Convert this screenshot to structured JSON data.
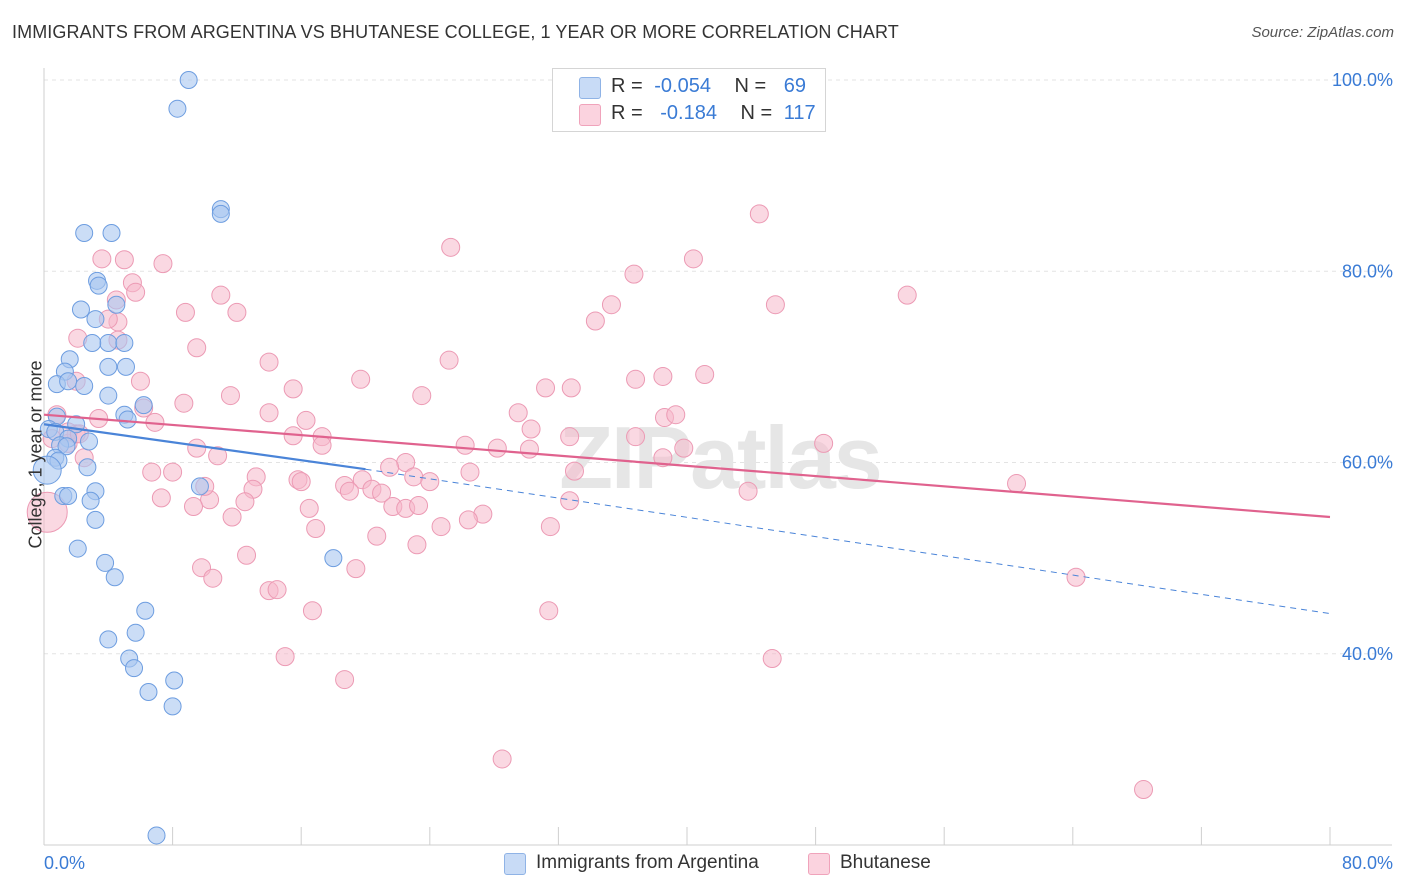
{
  "title": "IMMIGRANTS FROM ARGENTINA VS BHUTANESE COLLEGE, 1 YEAR OR MORE CORRELATION CHART",
  "source": "Source: ZipAtlas.com",
  "watermark": "ZIPatlas",
  "legend": {
    "rows": [
      {
        "r_label": "R =",
        "r_value": "-0.054",
        "n_label": "N =",
        "n_value": "69",
        "color": "#a9c7f0"
      },
      {
        "r_label": "R =",
        "r_value": "-0.184",
        "n_label": "N =",
        "n_value": "117",
        "color": "#f5b8cb"
      }
    ]
  },
  "bottom_legend": [
    {
      "label": "Immigrants from Argentina",
      "color": "#a9c7f0"
    },
    {
      "label": "Bhutanese",
      "color": "#f5b8cb"
    }
  ],
  "chart_data": {
    "type": "scatter",
    "ylabel": "College, 1 year or more",
    "xlim": [
      0,
      80
    ],
    "ylim": [
      20,
      100
    ],
    "x_tick_labels": [
      "0.0%",
      "80.0%"
    ],
    "y_tick_labels": [
      "100.0%",
      "80.0%",
      "60.0%",
      "40.0%"
    ],
    "y_ticks": [
      100,
      80,
      60,
      40
    ],
    "grid": true,
    "series": [
      {
        "name": "Immigrants from Argentina",
        "color": "#4a84d8",
        "fill": "#a9c7f0",
        "points": [
          [
            9,
            100
          ],
          [
            8.3,
            97
          ],
          [
            11,
            86.5
          ],
          [
            11,
            86
          ],
          [
            4.2,
            84
          ],
          [
            2.5,
            84
          ],
          [
            3.3,
            79
          ],
          [
            3.4,
            78.5
          ],
          [
            2.3,
            76
          ],
          [
            4.5,
            76.5
          ],
          [
            3.2,
            75
          ],
          [
            4,
            72.5
          ],
          [
            5,
            72.5
          ],
          [
            3,
            72.5
          ],
          [
            1.6,
            70.8
          ],
          [
            5.1,
            70
          ],
          [
            4,
            70
          ],
          [
            1.3,
            69.5
          ],
          [
            0.8,
            68.2
          ],
          [
            1.5,
            68.5
          ],
          [
            2.5,
            68
          ],
          [
            4,
            67
          ],
          [
            6.2,
            66
          ],
          [
            5,
            65
          ],
          [
            5.2,
            64.5
          ],
          [
            0.8,
            64.8
          ],
          [
            2,
            64
          ],
          [
            0.3,
            63.5
          ],
          [
            0.7,
            63.2
          ],
          [
            1.5,
            62.5
          ],
          [
            2.8,
            62.2
          ],
          [
            1,
            61.8
          ],
          [
            1.4,
            61.7
          ],
          [
            0.7,
            60.5
          ],
          [
            0.9,
            60.2
          ],
          [
            2.7,
            59.5
          ],
          [
            9.7,
            57.5
          ],
          [
            3.2,
            57
          ],
          [
            1.2,
            56.5
          ],
          [
            1.5,
            56.5
          ],
          [
            2.9,
            56
          ],
          [
            3.2,
            54
          ],
          [
            2.1,
            51
          ],
          [
            18,
            50
          ],
          [
            3.8,
            49.5
          ],
          [
            4.4,
            48
          ],
          [
            6.3,
            44.5
          ],
          [
            4,
            41.5
          ],
          [
            5.7,
            42.2
          ],
          [
            5.3,
            39.5
          ],
          [
            5.6,
            38.5
          ],
          [
            8.1,
            37.2
          ],
          [
            6.5,
            36
          ],
          [
            8,
            34.5
          ],
          [
            7,
            21
          ],
          [
            0.2,
            59.2
          ]
        ],
        "trend_solid": [
          [
            0,
            64
          ],
          [
            20,
            59.3
          ]
        ],
        "trend_dashed": [
          [
            20,
            59.3
          ],
          [
            80,
            44.2
          ]
        ]
      },
      {
        "name": "Bhutanese",
        "color": "#e0628e",
        "fill": "#f5b8cb",
        "points": [
          [
            44.5,
            86
          ],
          [
            40.4,
            81.3
          ],
          [
            25.3,
            82.5
          ],
          [
            36.7,
            79.7
          ],
          [
            53.7,
            77.5
          ],
          [
            5,
            81.2
          ],
          [
            7.4,
            80.8
          ],
          [
            3.6,
            81.3
          ],
          [
            5.5,
            78.8
          ],
          [
            5.7,
            77.8
          ],
          [
            11,
            77.5
          ],
          [
            4.5,
            77
          ],
          [
            8.8,
            75.7
          ],
          [
            12,
            75.7
          ],
          [
            34.3,
            74.8
          ],
          [
            35.3,
            76.5
          ],
          [
            45.5,
            76.5
          ],
          [
            4.6,
            74.7
          ],
          [
            4,
            75
          ],
          [
            2.1,
            73
          ],
          [
            4.6,
            72.8
          ],
          [
            9.5,
            72
          ],
          [
            14,
            70.5
          ],
          [
            25.2,
            70.7
          ],
          [
            41.1,
            69.2
          ],
          [
            38.5,
            69
          ],
          [
            36.8,
            68.7
          ],
          [
            19.7,
            68.7
          ],
          [
            6,
            68.5
          ],
          [
            2,
            68.5
          ],
          [
            15.5,
            67.7
          ],
          [
            31.2,
            67.8
          ],
          [
            32.8,
            67.8
          ],
          [
            11.6,
            67
          ],
          [
            23.5,
            67
          ],
          [
            8.7,
            66.2
          ],
          [
            6.2,
            65.7
          ],
          [
            14,
            65.2
          ],
          [
            29.5,
            65.2
          ],
          [
            38.6,
            64.7
          ],
          [
            39.3,
            65
          ],
          [
            16.3,
            64.4
          ],
          [
            6.9,
            64.2
          ],
          [
            30.3,
            63.5
          ],
          [
            15.5,
            62.8
          ],
          [
            17.3,
            62.7
          ],
          [
            32.7,
            62.7
          ],
          [
            26.2,
            61.8
          ],
          [
            28.2,
            61.5
          ],
          [
            30.2,
            61.4
          ],
          [
            17.3,
            61.8
          ],
          [
            9.5,
            61.5
          ],
          [
            36.8,
            62.7
          ],
          [
            48.5,
            62
          ],
          [
            39.8,
            61.5
          ],
          [
            10.8,
            60.7
          ],
          [
            22.5,
            60
          ],
          [
            38.5,
            60.5
          ],
          [
            2.5,
            60.5
          ],
          [
            26.5,
            59
          ],
          [
            6.7,
            59
          ],
          [
            8,
            59
          ],
          [
            33,
            59.1
          ],
          [
            13.2,
            58.5
          ],
          [
            15.8,
            58.2
          ],
          [
            19.8,
            58.2
          ],
          [
            23,
            58.5
          ],
          [
            18.7,
            57.6
          ],
          [
            20.4,
            57.2
          ],
          [
            13,
            57.2
          ],
          [
            19,
            57
          ],
          [
            21,
            56.8
          ],
          [
            43.8,
            57
          ],
          [
            60.5,
            57.8
          ],
          [
            7.3,
            56.3
          ],
          [
            10.3,
            56.1
          ],
          [
            12.5,
            55.9
          ],
          [
            32.7,
            56
          ],
          [
            16.5,
            55.2
          ],
          [
            21.7,
            55.4
          ],
          [
            22.5,
            55.2
          ],
          [
            9.3,
            55.4
          ],
          [
            23.3,
            55.5
          ],
          [
            11.7,
            54.3
          ],
          [
            27.3,
            54.6
          ],
          [
            26.4,
            54
          ],
          [
            16.9,
            53.1
          ],
          [
            24.7,
            53.3
          ],
          [
            31.5,
            53.3
          ],
          [
            20.7,
            52.3
          ],
          [
            23.2,
            51.4
          ],
          [
            12.6,
            50.3
          ],
          [
            9.8,
            49
          ],
          [
            19.4,
            48.9
          ],
          [
            10.5,
            47.9
          ],
          [
            64.2,
            48
          ],
          [
            14,
            46.6
          ],
          [
            14.5,
            46.7
          ],
          [
            16.7,
            44.5
          ],
          [
            31.4,
            44.5
          ],
          [
            15,
            39.7
          ],
          [
            45.3,
            39.5
          ],
          [
            18.7,
            37.3
          ],
          [
            28.5,
            29
          ],
          [
            68.4,
            25.8
          ],
          [
            0.2,
            54.8
          ],
          [
            1.5,
            62
          ],
          [
            0.8,
            65
          ],
          [
            3.4,
            64.6
          ],
          [
            2,
            63
          ],
          [
            0.5,
            62.5
          ],
          [
            1.5,
            63.2
          ],
          [
            2.2,
            63
          ],
          [
            10,
            57.5
          ],
          [
            16,
            58
          ],
          [
            21.5,
            59.5
          ],
          [
            24,
            58
          ]
        ],
        "trend_solid": [
          [
            0,
            65
          ],
          [
            80,
            54.3
          ]
        ]
      }
    ]
  }
}
